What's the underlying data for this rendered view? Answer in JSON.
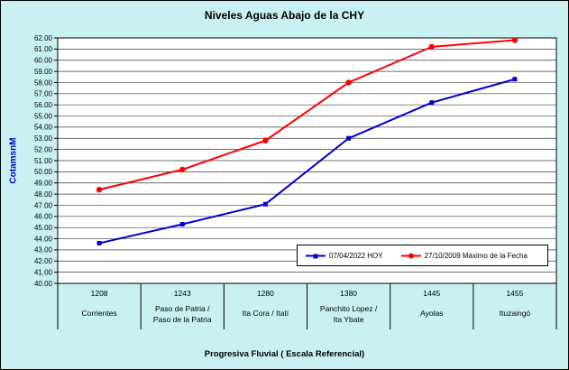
{
  "colors": {
    "background": "#C9F1F1",
    "plot_background": "#FFFFFF",
    "grid": "#3C3C3C",
    "axis": "#000000",
    "y_title": "#0000C0"
  },
  "chart_data": {
    "type": "line",
    "title": "Niveles Aguas Abajo de la CHY",
    "xlabel": "Progresiva Fluvial ( Escala Referencial)",
    "ylabel": "CotamsnM",
    "ylim": [
      40,
      62
    ],
    "ytick_step": 1,
    "ytick_format_decimals": 2,
    "grid": true,
    "legend_position": "inside-bottom-right",
    "categories": [
      {
        "km": "1208",
        "name_lines": [
          "Corrientes"
        ]
      },
      {
        "km": "1243",
        "name_lines": [
          "Paso de Patria /",
          "Paso de la Patria"
        ]
      },
      {
        "km": "1280",
        "name_lines": [
          "Ita Cora / Itatí"
        ]
      },
      {
        "km": "1380",
        "name_lines": [
          "Panchito Lopez /",
          "Ita Ybate"
        ]
      },
      {
        "km": "1445",
        "name_lines": [
          "Ayolas"
        ]
      },
      {
        "km": "1455",
        "name_lines": [
          "Ituzaingó"
        ]
      }
    ],
    "series": [
      {
        "name": "07/04/2022 HOY",
        "color": "#0000CC",
        "marker": "square",
        "values": [
          43.6,
          45.3,
          47.1,
          53.0,
          56.2,
          58.3
        ]
      },
      {
        "name": "27/10/2009 Máximo de la Fecha",
        "color": "#FF0000",
        "marker": "circle",
        "values": [
          48.4,
          50.2,
          52.8,
          58.0,
          61.2,
          61.8
        ]
      }
    ]
  }
}
